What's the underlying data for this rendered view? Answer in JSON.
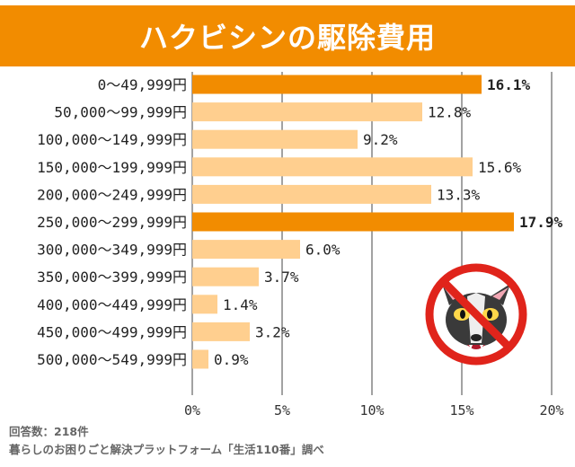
{
  "title": "ハクビシンの駆除費用",
  "colors": {
    "brand_orange": "#f28c00",
    "highlight_bar": "#f28c00",
    "normal_bar": "#ffcf8f",
    "grid": "#444444",
    "prohibit_red": "#e0241b"
  },
  "chart_data": {
    "type": "bar",
    "orientation": "horizontal",
    "categories": [
      "0〜49,999円",
      "50,000〜99,999円",
      "100,000〜149,999円",
      "150,000〜199,999円",
      "200,000〜249,999円",
      "250,000〜299,999円",
      "300,000〜349,999円",
      "350,000〜399,999円",
      "400,000〜449,999円",
      "450,000〜499,999円",
      "500,000〜549,999円"
    ],
    "values": [
      16.1,
      12.8,
      9.2,
      15.6,
      13.3,
      17.9,
      6.0,
      3.7,
      1.4,
      3.2,
      0.9
    ],
    "value_labels": [
      "16.1%",
      "12.8%",
      "9.2%",
      "15.6%",
      "13.3%",
      "17.9%",
      "6.0%",
      "3.7%",
      "1.4%",
      "3.2%",
      "0.9%"
    ],
    "highlighted": [
      true,
      false,
      false,
      false,
      false,
      true,
      false,
      false,
      false,
      false,
      false
    ],
    "xlim": [
      0,
      20
    ],
    "xticks": [
      0,
      5,
      10,
      15,
      20
    ],
    "xtick_labels": [
      "0%",
      "5%",
      "10%",
      "15%",
      "20%"
    ],
    "grid": true
  },
  "footer": {
    "respondents": "回答数：218件",
    "source": "暮らしのお困りごと解決プラットフォーム「生活110番」調べ"
  },
  "illustration": "no-civet-prohibition-icon"
}
